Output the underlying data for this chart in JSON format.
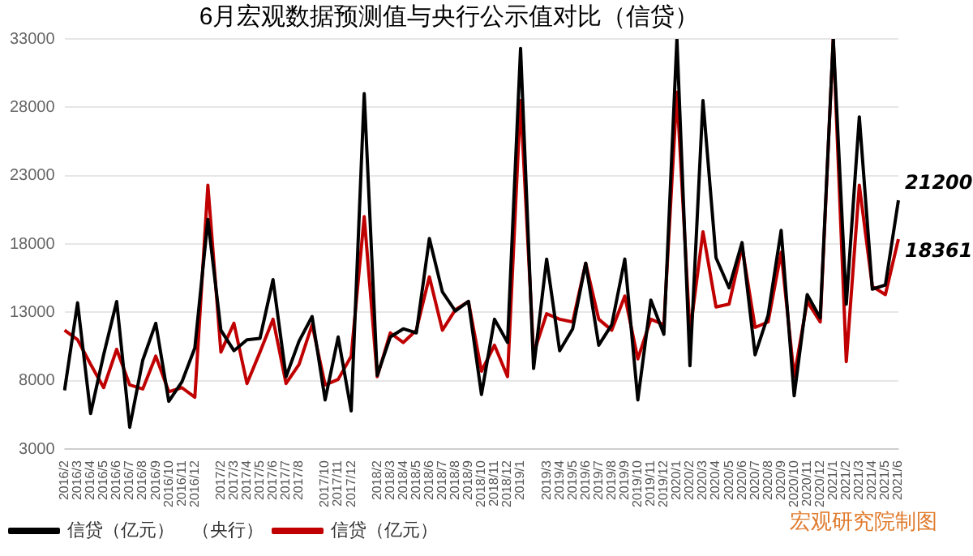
{
  "chart_data": {
    "type": "line",
    "title": "6月宏观数据预测值与央行公示值对比（信贷）",
    "categories": [
      "2016/2",
      "2016/3",
      "2016/4",
      "2016/5",
      "2016/6",
      "2016/7",
      "2016/8",
      "2016/9",
      "2016/10",
      "2016/11",
      "2016/12",
      null,
      "2017/2",
      "2017/3",
      "2017/4",
      "2017/5",
      "2017/6",
      "2017/7",
      "2017/8",
      null,
      "2017/10",
      "2017/11",
      "2017/12",
      null,
      "2018/2",
      "2018/3",
      "2018/4",
      "2018/5",
      "2018/6",
      "2018/7",
      "2018/8",
      "2018/9",
      "2018/10",
      "2018/11",
      "2018/12",
      "2019/1",
      null,
      "2019/3",
      "2019/4",
      "2019/5",
      "2019/6",
      "2019/7",
      "2019/8",
      "2019/9",
      "2019/10",
      "2019/11",
      "2019/12",
      "2020/1",
      "2020/2",
      "2020/3",
      "2020/4",
      "2020/5",
      "2020/6",
      "2020/7",
      "2020/8",
      "2020/9",
      "2020/10",
      "2020/11",
      "2020/12",
      "2021/1",
      "2021/2",
      "2021/3",
      "2021/4",
      "2021/5",
      "2021/6"
    ],
    "series": [
      {
        "name": "信贷（亿元）　（央行）",
        "color": "#000000",
        "values": [
          7300,
          13700,
          5600,
          9900,
          13800,
          4600,
          9500,
          12200,
          6500,
          7900,
          10400,
          19800,
          11700,
          10200,
          11000,
          11100,
          15400,
          8300,
          10900,
          12700,
          6600,
          11200,
          5800,
          29000,
          8400,
          11200,
          11800,
          11500,
          18400,
          14500,
          13100,
          13800,
          7000,
          12500,
          10800,
          32300,
          8900,
          16900,
          10200,
          11800,
          16600,
          10600,
          12100,
          16900,
          6600,
          13900,
          11400,
          33000,
          9100,
          28500,
          17000,
          14800,
          18100,
          9900,
          12800,
          19000,
          6900,
          14300,
          12600,
          33000,
          13600,
          27300,
          14700,
          15000,
          21200
        ],
        "value_labels": [
          null,
          null,
          null,
          null,
          null,
          null,
          null,
          null,
          null,
          null,
          null,
          null,
          null,
          null,
          null,
          null,
          null,
          null,
          null,
          null,
          null,
          null,
          null,
          null,
          null,
          null,
          null,
          null,
          null,
          null,
          null,
          null,
          null,
          null,
          null,
          null,
          null,
          null,
          null,
          null,
          null,
          null,
          null,
          null,
          null,
          null,
          null,
          null,
          null,
          null,
          null,
          null,
          null,
          null,
          null,
          null,
          null,
          null,
          null,
          null,
          null,
          null,
          null,
          null,
          "21200"
        ]
      },
      {
        "name": "信贷（亿元）",
        "color": "#c00000",
        "values": [
          11700,
          11000,
          9200,
          7500,
          10300,
          7700,
          7400,
          9800,
          7200,
          7500,
          6800,
          22300,
          10100,
          12200,
          7800,
          10100,
          12500,
          7800,
          9200,
          12100,
          7700,
          8100,
          9800,
          20000,
          8300,
          11500,
          10800,
          11700,
          15600,
          11700,
          13200,
          13800,
          8700,
          10600,
          8300,
          28500,
          10000,
          12900,
          12500,
          12300,
          16600,
          12500,
          11700,
          14200,
          9600,
          12500,
          12100,
          29100,
          11500,
          18900,
          13400,
          13600,
          17800,
          11900,
          12300,
          17400,
          8300,
          13800,
          12300,
          33000,
          9400,
          22300,
          14900,
          14300,
          18361
        ],
        "value_labels": [
          null,
          null,
          null,
          null,
          null,
          null,
          null,
          null,
          null,
          null,
          null,
          null,
          null,
          null,
          null,
          null,
          null,
          null,
          null,
          null,
          null,
          null,
          null,
          null,
          null,
          null,
          null,
          null,
          null,
          null,
          null,
          null,
          null,
          null,
          null,
          null,
          null,
          null,
          null,
          null,
          null,
          null,
          null,
          null,
          null,
          null,
          null,
          null,
          null,
          null,
          null,
          null,
          null,
          null,
          null,
          null,
          null,
          null,
          null,
          null,
          null,
          null,
          null,
          null,
          "18361"
        ]
      }
    ],
    "ylim": [
      3000,
      33000
    ],
    "yticks": [
      3000,
      8000,
      13000,
      18000,
      23000,
      28000,
      33000
    ],
    "grid": "y",
    "legend": "bottom left",
    "marker": "none",
    "line_style": "solid",
    "annotations": [
      "宏观研究院制图"
    ]
  }
}
